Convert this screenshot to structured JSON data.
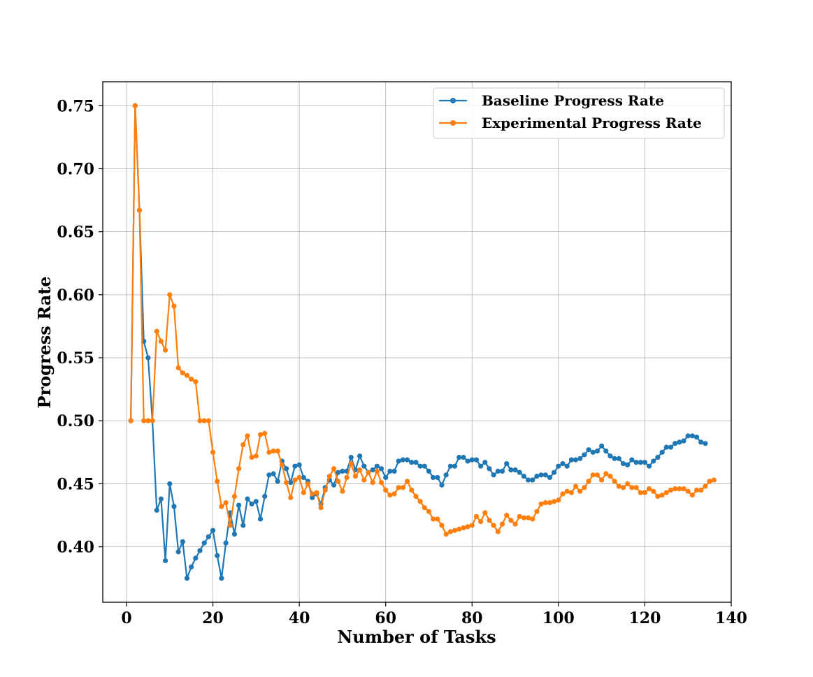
{
  "chart_data": {
    "type": "line",
    "title": "",
    "xlabel": "Number of Tasks",
    "ylabel": "Progress Rate",
    "xlim": [
      -5.5,
      140
    ],
    "ylim": [
      0.356,
      0.769
    ],
    "xticks": [
      0,
      20,
      40,
      60,
      80,
      100,
      120,
      140
    ],
    "yticks": [
      0.4,
      0.45,
      0.5,
      0.55,
      0.6,
      0.65,
      0.7,
      0.75
    ],
    "xtick_labels": [
      "0",
      "20",
      "40",
      "60",
      "80",
      "100",
      "120",
      "140"
    ],
    "ytick_labels": [
      "0.40",
      "0.45",
      "0.50",
      "0.55",
      "0.60",
      "0.65",
      "0.70",
      "0.75"
    ],
    "grid": true,
    "legend_position": "top-right",
    "x_start": 1,
    "series": [
      {
        "name": "Baseline Progress Rate",
        "color": "#1f77b4",
        "values": [
          0.5,
          0.75,
          0.667,
          0.563,
          0.55,
          0.5,
          0.429,
          0.438,
          0.389,
          0.45,
          0.432,
          0.396,
          0.404,
          0.375,
          0.384,
          0.391,
          0.397,
          0.403,
          0.408,
          0.413,
          0.393,
          0.375,
          0.403,
          0.427,
          0.41,
          0.433,
          0.417,
          0.438,
          0.434,
          0.436,
          0.422,
          0.44,
          0.457,
          0.458,
          0.452,
          0.468,
          0.462,
          0.451,
          0.464,
          0.465,
          0.455,
          0.452,
          0.439,
          0.442,
          0.434,
          0.447,
          0.453,
          0.449,
          0.459,
          0.46,
          0.46,
          0.471,
          0.461,
          0.472,
          0.464,
          0.459,
          0.461,
          0.464,
          0.462,
          0.455,
          0.46,
          0.46,
          0.468,
          0.469,
          0.469,
          0.467,
          0.467,
          0.464,
          0.464,
          0.46,
          0.455,
          0.455,
          0.449,
          0.457,
          0.464,
          0.464,
          0.471,
          0.471,
          0.468,
          0.469,
          0.469,
          0.464,
          0.467,
          0.462,
          0.457,
          0.46,
          0.46,
          0.466,
          0.461,
          0.461,
          0.459,
          0.456,
          0.453,
          0.453,
          0.456,
          0.457,
          0.457,
          0.455,
          0.459,
          0.464,
          0.466,
          0.464,
          0.469,
          0.469,
          0.47,
          0.473,
          0.477,
          0.475,
          0.476,
          0.48,
          0.476,
          0.472,
          0.47,
          0.47,
          0.466,
          0.465,
          0.469,
          0.467,
          0.467,
          0.467,
          0.464,
          0.468,
          0.471,
          0.475,
          0.479,
          0.479,
          0.482,
          0.483,
          0.484,
          0.488,
          0.488,
          0.487,
          0.483,
          0.482
        ]
      },
      {
        "name": "Experimental Progress Rate",
        "color": "#ff7f0e",
        "values": [
          0.5,
          0.75,
          0.667,
          0.5,
          0.5,
          0.5,
          0.571,
          0.563,
          0.556,
          0.6,
          0.591,
          0.542,
          0.538,
          0.536,
          0.533,
          0.531,
          0.5,
          0.5,
          0.5,
          0.475,
          0.452,
          0.432,
          0.435,
          0.417,
          0.44,
          0.462,
          0.481,
          0.488,
          0.471,
          0.472,
          0.489,
          0.49,
          0.475,
          0.476,
          0.476,
          0.465,
          0.451,
          0.439,
          0.453,
          0.455,
          0.443,
          0.45,
          0.442,
          0.443,
          0.431,
          0.445,
          0.456,
          0.462,
          0.452,
          0.444,
          0.455,
          0.466,
          0.456,
          0.461,
          0.453,
          0.459,
          0.451,
          0.46,
          0.451,
          0.445,
          0.441,
          0.442,
          0.447,
          0.447,
          0.452,
          0.445,
          0.44,
          0.436,
          0.431,
          0.428,
          0.422,
          0.422,
          0.417,
          0.41,
          0.412,
          0.413,
          0.414,
          0.415,
          0.416,
          0.417,
          0.424,
          0.42,
          0.427,
          0.421,
          0.417,
          0.412,
          0.418,
          0.425,
          0.421,
          0.418,
          0.424,
          0.423,
          0.423,
          0.422,
          0.428,
          0.434,
          0.435,
          0.435,
          0.436,
          0.437,
          0.442,
          0.444,
          0.443,
          0.448,
          0.444,
          0.447,
          0.452,
          0.457,
          0.457,
          0.453,
          0.458,
          0.456,
          0.452,
          0.448,
          0.447,
          0.45,
          0.447,
          0.447,
          0.443,
          0.443,
          0.446,
          0.444,
          0.44,
          0.441,
          0.443,
          0.445,
          0.446,
          0.446,
          0.446,
          0.444,
          0.441,
          0.445,
          0.445,
          0.448,
          0.452,
          0.453
        ]
      }
    ]
  }
}
